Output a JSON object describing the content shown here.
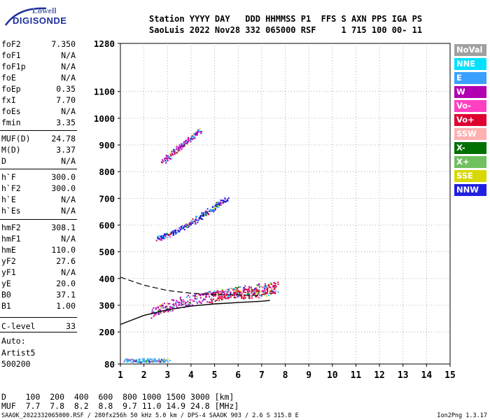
{
  "brand": {
    "line1": "Lowell",
    "line2": "DIGISONDE"
  },
  "header": {
    "line1": "Station YYYY DAY   DDD HHMMSS P1  FFS S AXN PPS IGA PS",
    "line2": "SaoLuis 2022 Nov28 332 065000 RSF     1 715 100 00- 11"
  },
  "params": [
    {
      "label": "foF2",
      "value": "7.350"
    },
    {
      "label": "foF1",
      "value": "N/A"
    },
    {
      "label": "foF1p",
      "value": "N/A"
    },
    {
      "label": "foE",
      "value": "N/A"
    },
    {
      "label": "foEp",
      "value": "0.35"
    },
    {
      "label": "fxI",
      "value": "7.70"
    },
    {
      "label": "foEs",
      "value": "N/A"
    },
    {
      "label": "fmin",
      "value": "3.35"
    },
    {
      "label": "MUF(D)",
      "value": "24.78"
    },
    {
      "label": "M(D)",
      "value": "3.37"
    },
    {
      "label": "D",
      "value": "N/A"
    },
    {
      "label": "h`F",
      "value": "300.0"
    },
    {
      "label": "h`F2",
      "value": "300.0"
    },
    {
      "label": "h`E",
      "value": "N/A"
    },
    {
      "label": "h`Es",
      "value": "N/A"
    },
    {
      "label": "hmF2",
      "value": "308.1"
    },
    {
      "label": "hmF1",
      "value": "N/A"
    },
    {
      "label": "hmE",
      "value": "110.0"
    },
    {
      "label": "yF2",
      "value": "27.6"
    },
    {
      "label": "yF1",
      "value": "N/A"
    },
    {
      "label": "yE",
      "value": "20.0"
    },
    {
      "label": "B0",
      "value": "37.1"
    },
    {
      "label": "B1",
      "value": "1.00"
    },
    {
      "label": "C-level",
      "value": "33"
    }
  ],
  "auto": {
    "label": "Auto:",
    "artist": "Artist5",
    "version": "500200"
  },
  "legend": [
    {
      "label": "NoVal",
      "color": "#a0a0a0"
    },
    {
      "label": "NNE",
      "color": "#00e0ff"
    },
    {
      "label": "E",
      "color": "#3aa0ff"
    },
    {
      "label": "W",
      "color": "#b000b0"
    },
    {
      "label": "Vo-",
      "color": "#ff40c0"
    },
    {
      "label": "Vo+",
      "color": "#e00030"
    },
    {
      "label": "SSW",
      "color": "#ffb0b0"
    },
    {
      "label": "X-",
      "color": "#007000"
    },
    {
      "label": "X+",
      "color": "#70c060"
    },
    {
      "label": "SSE",
      "color": "#d8d800"
    },
    {
      "label": "NNW",
      "color": "#2020e0"
    }
  ],
  "chart_data": {
    "type": "scatter",
    "xlim": [
      1,
      15
    ],
    "ylim": [
      80,
      1280
    ],
    "x_ticks": [
      1,
      2,
      3,
      4,
      5,
      6,
      7,
      8,
      9,
      10,
      11,
      12,
      13,
      14,
      15
    ],
    "y_ticks": [
      80,
      200,
      300,
      400,
      500,
      600,
      700,
      800,
      900,
      1000,
      1100,
      1280
    ],
    "grid": "dotted",
    "legend_position": "right",
    "echo_traces": [
      {
        "name": "W",
        "x": [
          2.3,
          2.8,
          3.3,
          3.9,
          4.5,
          5.2,
          5.9,
          6.6,
          7.3
        ],
        "y": [
          270,
          290,
          305,
          320,
          330,
          340,
          350,
          360,
          370
        ]
      },
      {
        "name": "Vo+",
        "x": [
          4.8,
          5.3,
          5.8,
          6.3,
          6.8,
          7.3,
          7.6
        ],
        "y": [
          330,
          340,
          350,
          345,
          350,
          360,
          370
        ]
      },
      {
        "name": "NNW",
        "x": [
          2.6,
          3.0,
          3.5,
          4.0,
          4.5,
          5.0,
          5.5
        ],
        "y": [
          550,
          565,
          585,
          610,
          640,
          670,
          700
        ]
      },
      {
        "name": "W",
        "x": [
          2.8,
          3.2,
          3.6,
          4.0,
          4.4
        ],
        "y": [
          840,
          870,
          900,
          930,
          960
        ]
      },
      {
        "name": "E",
        "x": [
          1.2,
          1.8,
          2.4,
          3.0
        ],
        "y": [
          95,
          95,
          95,
          95
        ]
      }
    ],
    "profile_curve": {
      "x": [
        1,
        2,
        3,
        4,
        5,
        6,
        7,
        7.35
      ],
      "y": [
        228,
        262,
        283,
        297,
        305,
        310,
        315,
        318
      ]
    },
    "dashed_curve": {
      "x": [
        1,
        2,
        3,
        4,
        5,
        6,
        7
      ],
      "y": [
        405,
        375,
        355,
        345,
        340,
        338,
        337
      ]
    },
    "dm_table": {
      "d_label": "D",
      "d_values": [
        "100",
        "200",
        "400",
        "600",
        "800",
        "1000",
        "1500",
        "3000"
      ],
      "d_unit": "[km]",
      "muf_label": "MUF",
      "muf_values": [
        "7.7",
        "7.8",
        "8.2",
        "8.8",
        "9.7",
        "11.0",
        "14.9",
        "24.8"
      ],
      "muf_unit": "[MHz]"
    }
  },
  "footer": {
    "text": "SAAOK_2022332065000.RSF / 280fx256h 50 kHz 5.0 km / DPS-4 SAAOK 903 / 2.6 S 315.8 E",
    "version": "Ion2Png 1.3.17"
  }
}
